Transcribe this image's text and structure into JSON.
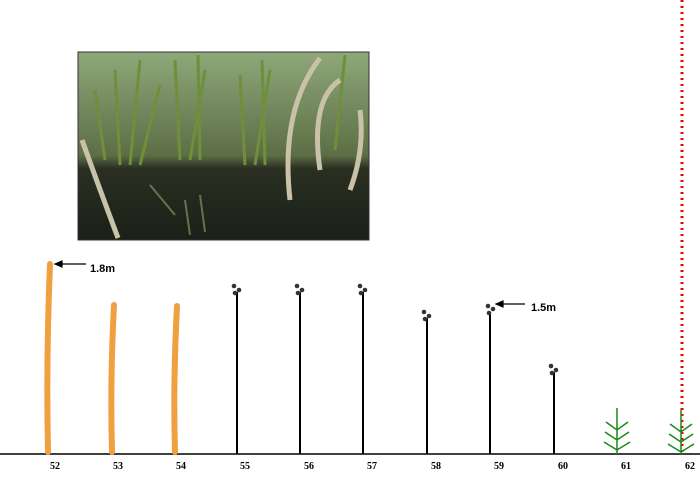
{
  "annotations": [
    "1.8m",
    "1.5m"
  ],
  "positions": [
    "52",
    "53",
    "54",
    "55",
    "56",
    "57",
    "58",
    "59",
    "60",
    "61",
    "62"
  ]
}
